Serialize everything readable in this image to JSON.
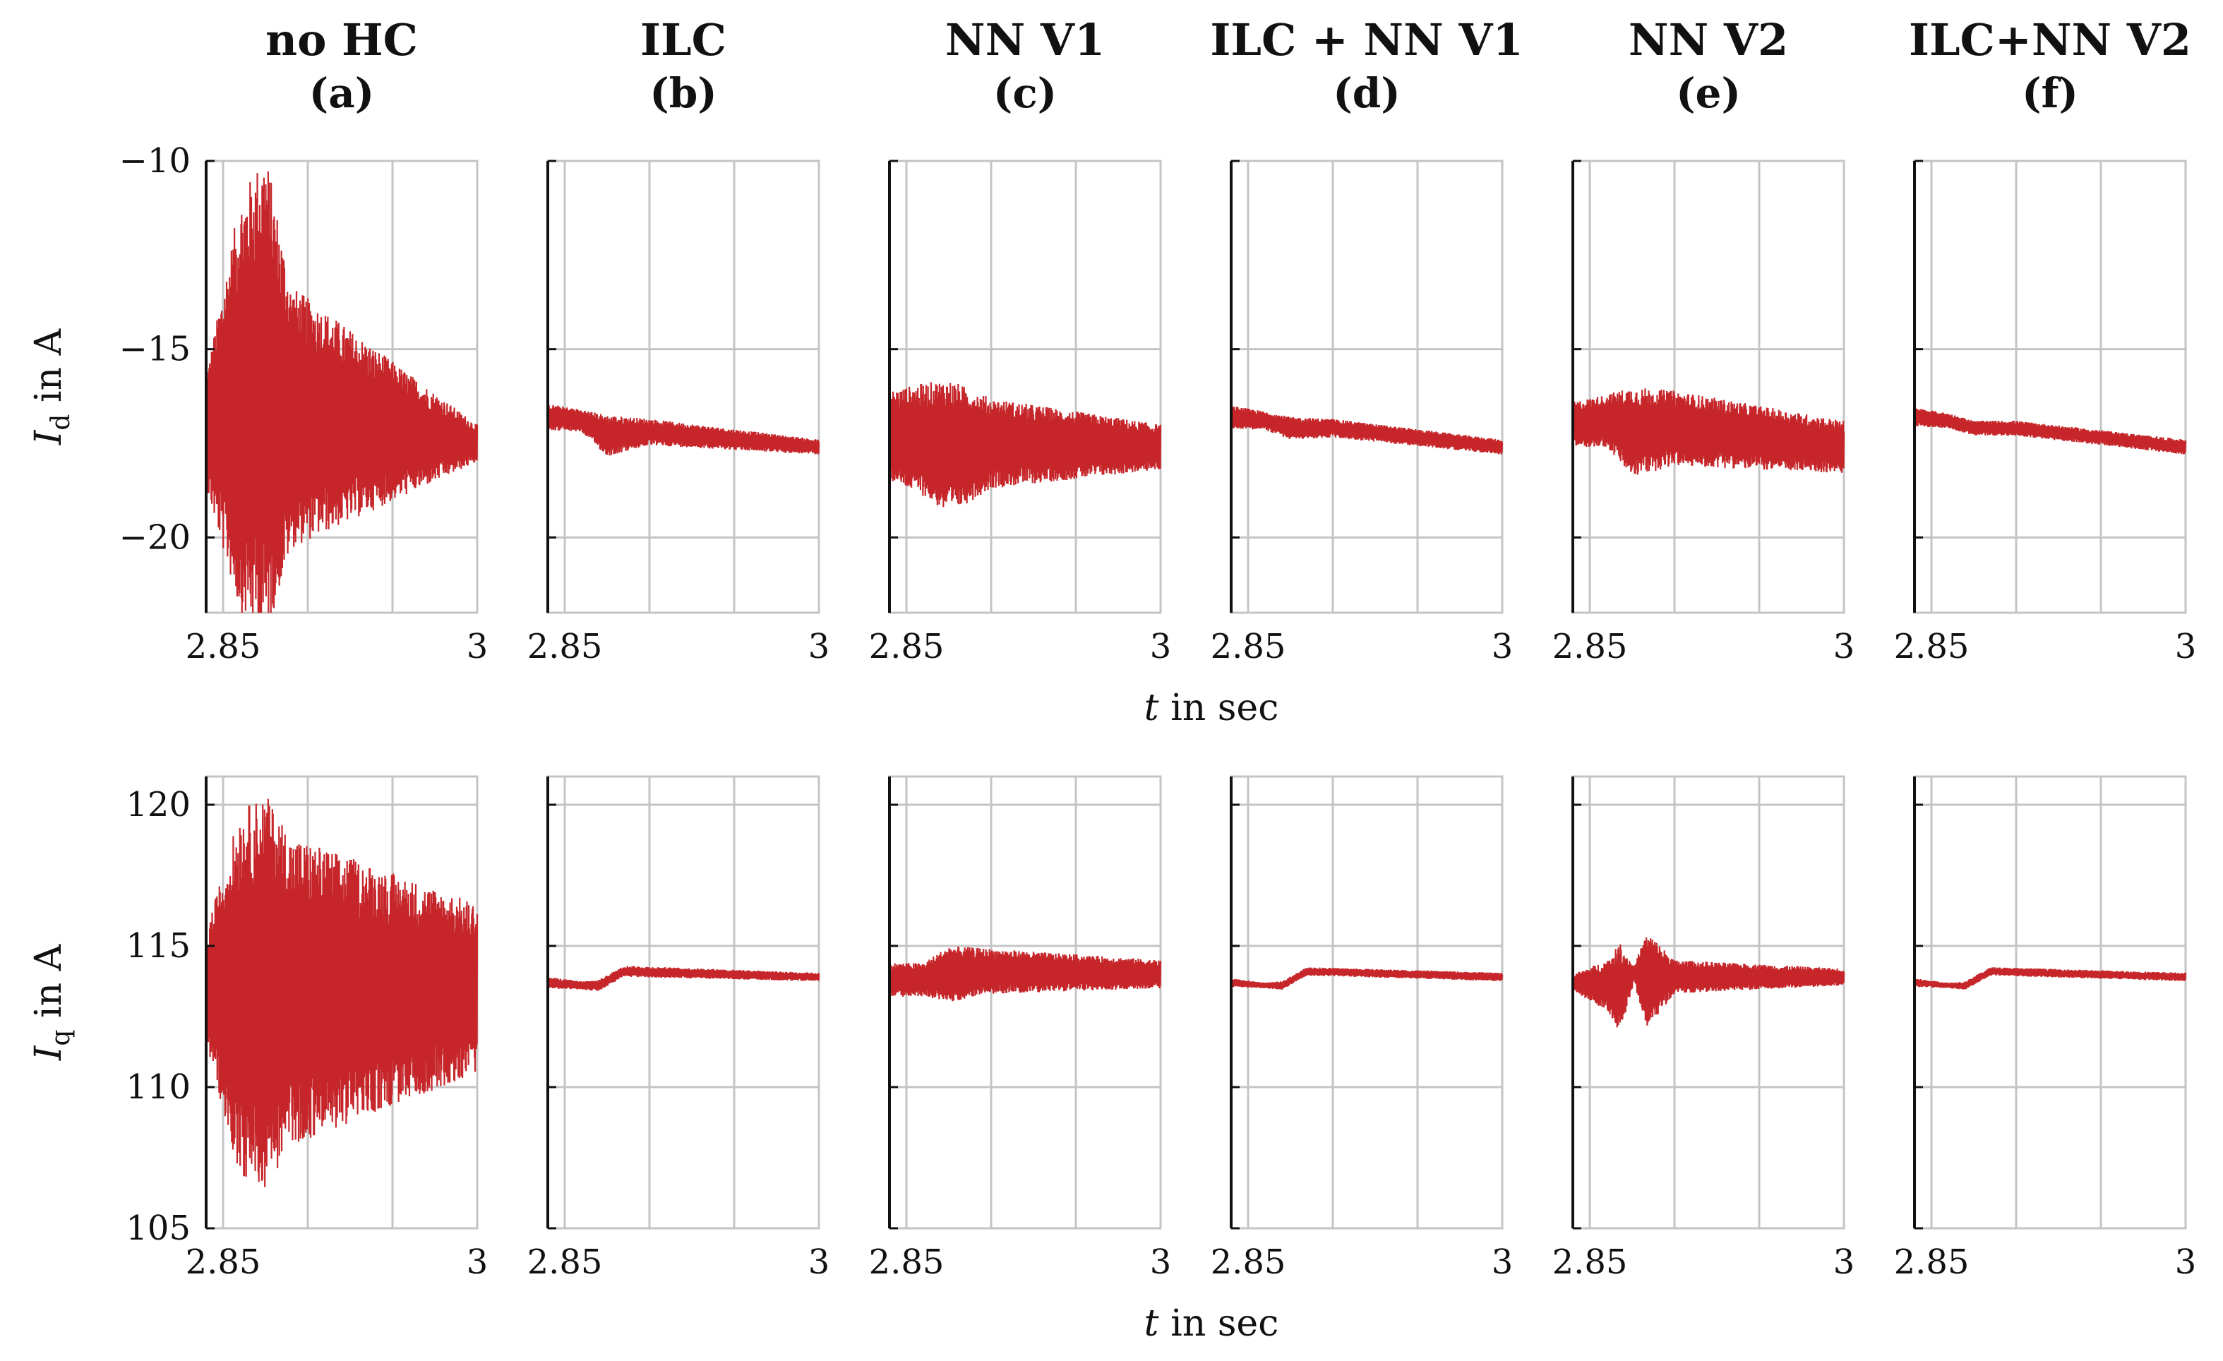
{
  "chart_data": {
    "type": "line",
    "trace_color": "#c6262a",
    "xlim": [
      2.84,
      3.0
    ],
    "x_ticks": [
      2.85,
      3.0
    ],
    "x_tick_labels": [
      "2.85",
      "3"
    ],
    "x_label_var": "t",
    "x_label_rest": " in sec",
    "columns": [
      {
        "title": "no HC",
        "letter": "(a)"
      },
      {
        "title": "ILC",
        "letter": "(b)"
      },
      {
        "title": "NN V1",
        "letter": "(c)"
      },
      {
        "title": "ILC + NN V1",
        "letter": "(d)"
      },
      {
        "title": "NN V2",
        "letter": "(e)"
      },
      {
        "title": "ILC+NN V2",
        "letter": "(f)"
      }
    ],
    "rows": [
      {
        "ylabel_var": "I",
        "ylabel_sub": "d",
        "ylabel_rest": " in A",
        "ylim": [
          -22,
          -10
        ],
        "y_ticks": [
          -20,
          -15,
          -10
        ],
        "y_tick_labels": [
          "−20",
          "−15",
          "−10"
        ],
        "series": [
          {
            "panel": "a",
            "x": [
              2.84,
              2.86,
              2.875,
              2.89,
              3.0
            ],
            "mean": [
              -17.2,
              -16.5,
              -16.2,
              -16.8,
              -17.5
            ],
            "amplitude": [
              1.5,
              5.5,
              6.5,
              3.5,
              0.5
            ]
          },
          {
            "panel": "b",
            "x": [
              2.84,
              2.86,
              2.875,
              2.9,
              3.0
            ],
            "mean": [
              -16.8,
              -16.9,
              -17.3,
              -17.2,
              -17.6
            ],
            "amplitude": [
              0.35,
              0.3,
              0.55,
              0.35,
              0.2
            ]
          },
          {
            "panel": "c",
            "x": [
              2.84,
              2.86,
              2.875,
              2.9,
              3.0
            ],
            "mean": [
              -17.3,
              -17.4,
              -17.6,
              -17.5,
              -17.6
            ],
            "amplitude": [
              1.2,
              1.5,
              1.8,
              1.2,
              0.6
            ]
          },
          {
            "panel": "d",
            "x": [
              2.84,
              2.86,
              2.875,
              2.9,
              3.0
            ],
            "mean": [
              -16.8,
              -16.9,
              -17.1,
              -17.1,
              -17.6
            ],
            "amplitude": [
              0.3,
              0.25,
              0.3,
              0.25,
              0.2
            ]
          },
          {
            "panel": "e",
            "x": [
              2.84,
              2.86,
              2.875,
              2.9,
              3.0
            ],
            "mean": [
              -17.0,
              -16.9,
              -17.2,
              -17.1,
              -17.6
            ],
            "amplitude": [
              0.6,
              0.7,
              1.2,
              1.0,
              0.7
            ]
          },
          {
            "panel": "f",
            "x": [
              2.84,
              2.86,
              2.875,
              2.9,
              3.0
            ],
            "mean": [
              -16.8,
              -16.9,
              -17.1,
              -17.1,
              -17.6
            ],
            "amplitude": [
              0.25,
              0.2,
              0.2,
              0.2,
              0.2
            ]
          }
        ]
      },
      {
        "ylabel_var": "I",
        "ylabel_sub": "q",
        "ylabel_rest": " in A",
        "ylim": [
          105,
          121
        ],
        "y_ticks": [
          105,
          110,
          115,
          120
        ],
        "y_tick_labels": [
          "105",
          "110",
          "115",
          "120"
        ],
        "series": [
          {
            "panel": "a",
            "x": [
              2.84,
              2.86,
              2.875,
              2.89,
              3.0
            ],
            "mean": [
              113.5,
              113.3,
              113.4,
              113.4,
              113.5
            ],
            "amplitude": [
              2.0,
              6.5,
              7.0,
              5.5,
              3.0
            ]
          },
          {
            "panel": "b",
            "x": [
              2.84,
              2.86,
              2.87,
              2.885,
              3.0
            ],
            "mean": [
              113.7,
              113.6,
              113.6,
              114.1,
              113.9
            ],
            "amplitude": [
              0.2,
              0.15,
              0.2,
              0.2,
              0.15
            ]
          },
          {
            "panel": "c",
            "x": [
              2.84,
              2.86,
              2.875,
              2.9,
              3.0
            ],
            "mean": [
              113.8,
              113.8,
              114.0,
              114.1,
              114.0
            ],
            "amplitude": [
              0.6,
              0.6,
              1.0,
              0.8,
              0.5
            ]
          },
          {
            "panel": "d",
            "x": [
              2.84,
              2.86,
              2.87,
              2.885,
              3.0
            ],
            "mean": [
              113.7,
              113.6,
              113.6,
              114.1,
              113.9
            ],
            "amplitude": [
              0.15,
              0.1,
              0.15,
              0.15,
              0.15
            ]
          },
          {
            "panel": "e",
            "x": [
              2.84,
              2.86,
              2.868,
              2.876,
              2.884,
              2.9,
              3.0
            ],
            "mean": [
              113.7,
              113.6,
              113.5,
              114.0,
              113.8,
              113.9,
              113.9
            ],
            "amplitude": [
              0.3,
              0.9,
              1.6,
              0.3,
              1.7,
              0.6,
              0.3
            ]
          },
          {
            "panel": "f",
            "x": [
              2.84,
              2.86,
              2.87,
              2.885,
              3.0
            ],
            "mean": [
              113.7,
              113.6,
              113.6,
              114.1,
              113.9
            ],
            "amplitude": [
              0.15,
              0.1,
              0.15,
              0.15,
              0.15
            ]
          }
        ]
      }
    ]
  }
}
